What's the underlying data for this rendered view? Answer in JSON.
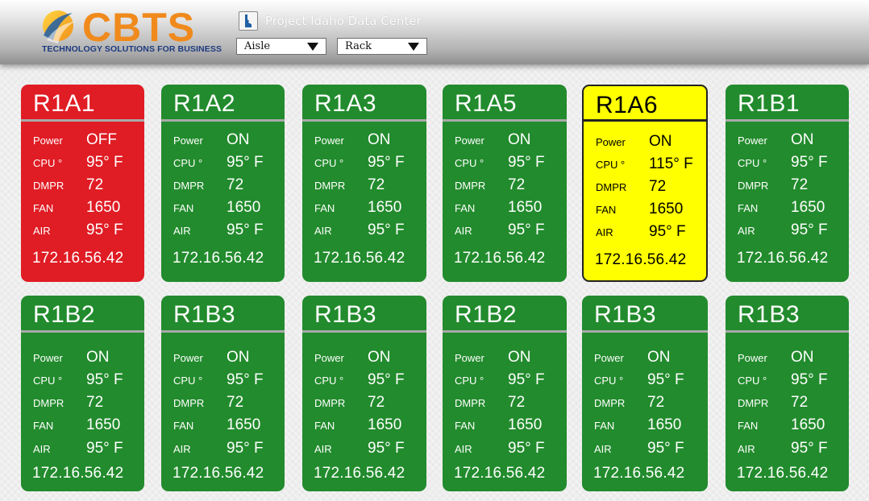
{
  "header": {
    "logo_text": "CBTS",
    "logo_tagline": "TECHNOLOGY SOLUTIONS FOR BUSINESS",
    "project_icon": "idaho-state-icon",
    "project_title": "Project Idaho Data Center",
    "aisle_select": {
      "value": "Aisle"
    },
    "rack_select": {
      "value": "Rack"
    }
  },
  "labels": {
    "power": "Power",
    "cpu": "CPU °",
    "dmpr": "DMPR",
    "fan": "FAN",
    "air": "AIR"
  },
  "status_colors": {
    "ok": "#228b2d",
    "alarm": "#e01c24",
    "warning": "#ffff00"
  },
  "racks": [
    {
      "name": "R1A1",
      "status": "alarm",
      "power": "OFF",
      "cpu": "95° F",
      "dmpr": "72",
      "fan": "1650",
      "air": "95° F",
      "ip": "172.16.56.42"
    },
    {
      "name": "R1A2",
      "status": "ok",
      "power": "ON",
      "cpu": "95° F",
      "dmpr": "72",
      "fan": "1650",
      "air": "95° F",
      "ip": "172.16.56.42"
    },
    {
      "name": "R1A3",
      "status": "ok",
      "power": "ON",
      "cpu": "95° F",
      "dmpr": "72",
      "fan": "1650",
      "air": "95° F",
      "ip": "172.16.56.42"
    },
    {
      "name": "R1A5",
      "status": "ok",
      "power": "ON",
      "cpu": "95° F",
      "dmpr": "72",
      "fan": "1650",
      "air": "95° F",
      "ip": "172.16.56.42"
    },
    {
      "name": "R1A6",
      "status": "warning",
      "power": "ON",
      "cpu": "115° F",
      "dmpr": "72",
      "fan": "1650",
      "air": "95° F",
      "ip": "172.16.56.42"
    },
    {
      "name": "R1B1",
      "status": "ok",
      "power": "ON",
      "cpu": "95° F",
      "dmpr": "72",
      "fan": "1650",
      "air": "95° F",
      "ip": "172.16.56.42"
    },
    {
      "name": "R1B2",
      "status": "ok",
      "power": "ON",
      "cpu": "95° F",
      "dmpr": "72",
      "fan": "1650",
      "air": "95° F",
      "ip": "172.16.56.42"
    },
    {
      "name": "R1B3",
      "status": "ok",
      "power": "ON",
      "cpu": "95° F",
      "dmpr": "72",
      "fan": "1650",
      "air": "95° F",
      "ip": "172.16.56.42"
    },
    {
      "name": "R1B3",
      "status": "ok",
      "power": "ON",
      "cpu": "95° F",
      "dmpr": "72",
      "fan": "1650",
      "air": "95° F",
      "ip": "172.16.56.42"
    },
    {
      "name": "R1B2",
      "status": "ok",
      "power": "ON",
      "cpu": "95° F",
      "dmpr": "72",
      "fan": "1650",
      "air": "95° F",
      "ip": "172.16.56.42"
    },
    {
      "name": "R1B3",
      "status": "ok",
      "power": "ON",
      "cpu": "95° F",
      "dmpr": "72",
      "fan": "1650",
      "air": "95° F",
      "ip": "172.16.56.42"
    },
    {
      "name": "R1B3",
      "status": "ok",
      "power": "ON",
      "cpu": "95° F",
      "dmpr": "72",
      "fan": "1650",
      "air": "95° F",
      "ip": "172.16.56.42"
    }
  ]
}
